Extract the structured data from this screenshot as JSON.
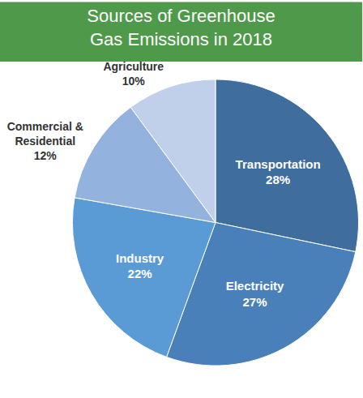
{
  "chart_data": {
    "type": "pie",
    "title": "Sources of Greenhouse Gas Emissions in 2018",
    "categories": [
      "Transportation",
      "Electricity",
      "Industry",
      "Commercial & Residential",
      "Agriculture"
    ],
    "values": [
      28,
      27,
      22,
      12,
      10
    ],
    "value_labels": [
      "28%",
      "27%",
      "22%",
      "12%",
      "10%"
    ],
    "colors": [
      "#3f6d9e",
      "#4a80ba",
      "#5b9bd5",
      "#93b3de",
      "#c1d0ea"
    ],
    "data_labels": true
  }
}
